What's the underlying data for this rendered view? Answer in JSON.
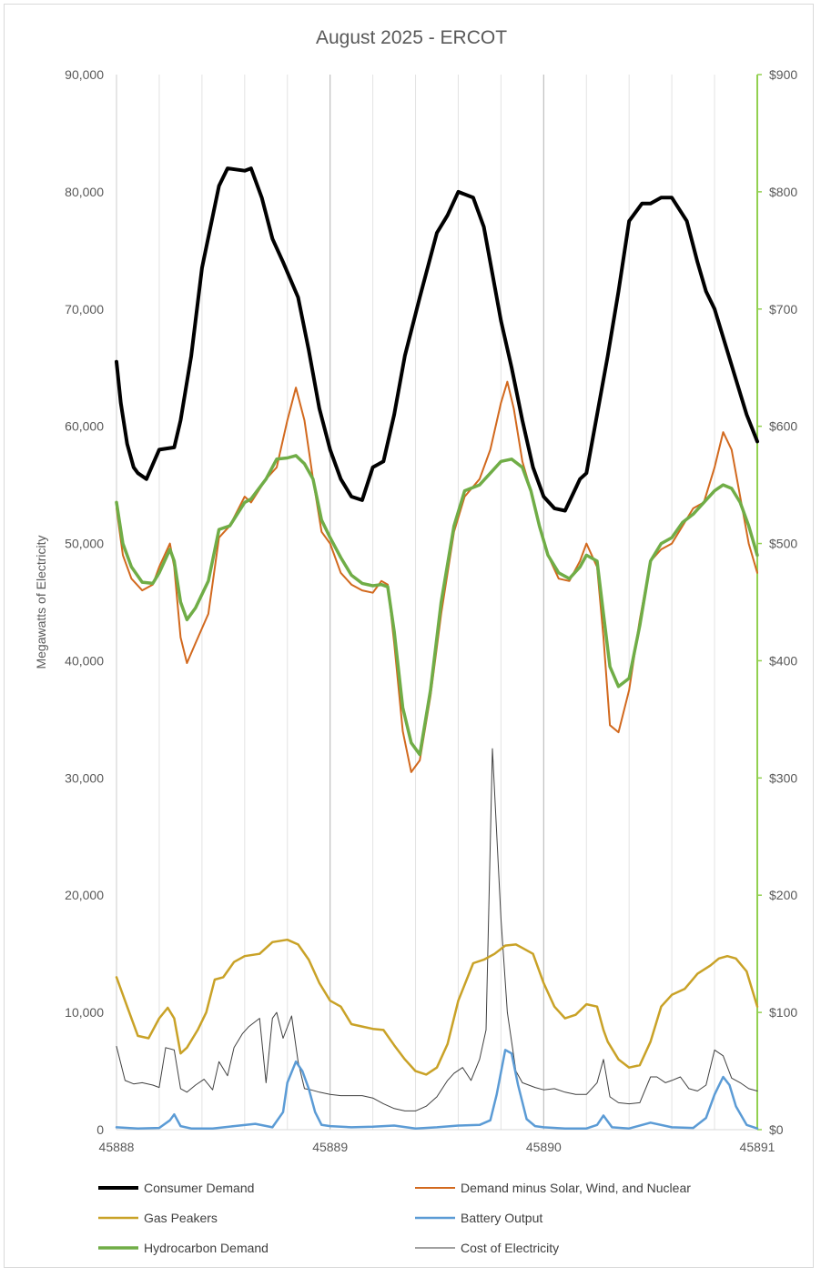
{
  "chart_data": {
    "type": "line",
    "title": "August 2025 - ERCOT",
    "ylabel": "Megawatts of Electricity",
    "ylabel_right": "",
    "xlabel": "",
    "xlim": [
      45888,
      45891
    ],
    "ylim": [
      0,
      90000
    ],
    "ylim_right": [
      0,
      900
    ],
    "x_ticks": [
      "45888",
      "45889",
      "45890",
      "45891"
    ],
    "y_ticks_left": [
      "0",
      "10,000",
      "20,000",
      "30,000",
      "40,000",
      "50,000",
      "60,000",
      "70,000",
      "80,000",
      "90,000"
    ],
    "y_ticks_right": [
      "$0",
      "$100",
      "$200",
      "$300",
      "$400",
      "$500",
      "$600",
      "$700",
      "$800",
      "$900"
    ],
    "grid": "vertical",
    "legend_position": "bottom",
    "colors": {
      "consumer": "#000000",
      "demand_minus": "#d2691e",
      "gas": "#c9a227",
      "battery": "#5b9bd5",
      "hydro": "#70ad47",
      "cost": "#404040",
      "right_axis": "#92d050"
    },
    "series": [
      {
        "name": "Consumer Demand",
        "axis": "left",
        "x": [
          45888,
          45888.02,
          45888.05,
          45888.08,
          45888.1,
          45888.14,
          45888.2,
          45888.27,
          45888.3,
          45888.35,
          45888.4,
          45888.48,
          45888.52,
          45888.6,
          45888.63,
          45888.68,
          45888.73,
          45888.78,
          45888.85,
          45888.9,
          45888.95,
          45889,
          45889.05,
          45889.1,
          45889.15,
          45889.2,
          45889.25,
          45889.3,
          45889.35,
          45889.42,
          45889.5,
          45889.55,
          45889.6,
          45889.67,
          45889.72,
          45889.76,
          45889.8,
          45889.85,
          45889.9,
          45889.95,
          45890,
          45890.05,
          45890.1,
          45890.17,
          45890.2,
          45890.25,
          45890.3,
          45890.35,
          45890.4,
          45890.46,
          45890.5,
          45890.55,
          45890.6,
          45890.67,
          45890.72,
          45890.76,
          45890.8,
          45890.85,
          45890.9,
          45890.95,
          45891
        ],
        "values": [
          65500,
          62000,
          58500,
          56500,
          56000,
          55500,
          58000,
          58200,
          60500,
          66000,
          73500,
          80500,
          82000,
          81800,
          82000,
          79500,
          76000,
          74000,
          71000,
          66500,
          61500,
          58000,
          55500,
          54000,
          53700,
          56500,
          57000,
          61000,
          66000,
          71000,
          76500,
          78000,
          80000,
          79500,
          77000,
          73000,
          69000,
          65000,
          60500,
          56500,
          54000,
          53000,
          52800,
          55500,
          56000,
          61000,
          66000,
          71500,
          77500,
          79000,
          79000,
          79500,
          79500,
          77500,
          74000,
          71500,
          70000,
          67000,
          64000,
          61000,
          58700
        ]
      },
      {
        "name": "Demand minus Solar, Wind, and Nuclear",
        "axis": "left",
        "x": [
          45888,
          45888.03,
          45888.07,
          45888.12,
          45888.17,
          45888.2,
          45888.25,
          45888.27,
          45888.3,
          45888.33,
          45888.37,
          45888.43,
          45888.48,
          45888.53,
          45888.6,
          45888.63,
          45888.7,
          45888.75,
          45888.8,
          45888.84,
          45888.88,
          45888.92,
          45888.96,
          45889,
          45889.05,
          45889.1,
          45889.15,
          45889.2,
          45889.24,
          45889.27,
          45889.3,
          45889.34,
          45889.38,
          45889.42,
          45889.47,
          45889.52,
          45889.58,
          45889.63,
          45889.7,
          45889.75,
          45889.8,
          45889.83,
          45889.86,
          45889.9,
          45889.94,
          45889.98,
          45890.02,
          45890.07,
          45890.12,
          45890.17,
          45890.2,
          45890.25,
          45890.28,
          45890.31,
          45890.35,
          45890.4,
          45890.45,
          45890.5,
          45890.55,
          45890.6,
          45890.65,
          45890.7,
          45890.75,
          45890.8,
          45890.84,
          45890.88,
          45890.92,
          45890.96,
          45891
        ],
        "values": [
          53000,
          49000,
          47000,
          46000,
          46500,
          48000,
          50000,
          48000,
          42000,
          39800,
          41500,
          44000,
          50500,
          51500,
          54000,
          53500,
          55500,
          56500,
          60500,
          63300,
          60500,
          55500,
          51000,
          50000,
          47500,
          46500,
          46000,
          45800,
          46800,
          46500,
          41500,
          34000,
          30500,
          31500,
          37000,
          44000,
          51000,
          54000,
          55500,
          58000,
          62000,
          63800,
          61500,
          57000,
          54500,
          51500,
          49000,
          47000,
          46800,
          48500,
          50000,
          48000,
          42000,
          34500,
          33900,
          37500,
          43500,
          48500,
          49500,
          50000,
          51500,
          53000,
          53500,
          56500,
          59500,
          58000,
          54000,
          50000,
          47500
        ]
      },
      {
        "name": "Gas Peakers",
        "axis": "left",
        "x": [
          45888,
          45888.05,
          45888.1,
          45888.15,
          45888.2,
          45888.24,
          45888.27,
          45888.3,
          45888.33,
          45888.38,
          45888.42,
          45888.46,
          45888.5,
          45888.55,
          45888.6,
          45888.67,
          45888.73,
          45888.8,
          45888.85,
          45888.9,
          45888.95,
          45889,
          45889.05,
          45889.1,
          45889.15,
          45889.2,
          45889.25,
          45889.3,
          45889.35,
          45889.4,
          45889.45,
          45889.5,
          45889.55,
          45889.6,
          45889.67,
          45889.72,
          45889.77,
          45889.82,
          45889.87,
          45889.9,
          45889.95,
          45890,
          45890.05,
          45890.1,
          45890.15,
          45890.2,
          45890.25,
          45890.28,
          45890.3,
          45890.35,
          45890.4,
          45890.45,
          45890.5,
          45890.55,
          45890.6,
          45890.66,
          45890.72,
          45890.78,
          45890.82,
          45890.86,
          45890.9,
          45890.95,
          45891
        ],
        "values": [
          13000,
          10500,
          8000,
          7800,
          9500,
          10400,
          9500,
          6500,
          7000,
          8500,
          10000,
          12800,
          13000,
          14300,
          14800,
          15000,
          16000,
          16200,
          15800,
          14500,
          12500,
          11000,
          10500,
          9000,
          8800,
          8600,
          8500,
          7200,
          6000,
          5000,
          4700,
          5300,
          7300,
          11000,
          14200,
          14500,
          15000,
          15700,
          15800,
          15500,
          15000,
          12500,
          10500,
          9500,
          9800,
          10700,
          10500,
          8500,
          7500,
          6000,
          5300,
          5500,
          7500,
          10500,
          11500,
          12000,
          13300,
          14000,
          14600,
          14800,
          14600,
          13500,
          10500
        ]
      },
      {
        "name": "Battery Output",
        "axis": "left",
        "x": [
          45888,
          45888.1,
          45888.2,
          45888.25,
          45888.27,
          45888.3,
          45888.35,
          45888.45,
          45888.55,
          45888.65,
          45888.73,
          45888.78,
          45888.8,
          45888.84,
          45888.87,
          45888.9,
          45888.93,
          45888.96,
          45889,
          45889.1,
          45889.2,
          45889.3,
          45889.4,
          45889.5,
          45889.6,
          45889.7,
          45889.75,
          45889.78,
          45889.82,
          45889.85,
          45889.88,
          45889.92,
          45889.96,
          45890,
          45890.1,
          45890.2,
          45890.25,
          45890.28,
          45890.32,
          45890.4,
          45890.5,
          45890.6,
          45890.7,
          45890.76,
          45890.8,
          45890.84,
          45890.87,
          45890.9,
          45890.95,
          45891
        ],
        "values": [
          200,
          100,
          150,
          800,
          1300,
          300,
          100,
          100,
          300,
          500,
          200,
          1500,
          4000,
          5800,
          5000,
          3500,
          1500,
          400,
          300,
          200,
          250,
          350,
          100,
          200,
          350,
          400,
          800,
          3000,
          6800,
          6500,
          3800,
          900,
          300,
          200,
          100,
          100,
          400,
          1200,
          200,
          100,
          600,
          200,
          150,
          1000,
          3000,
          4500,
          3800,
          2000,
          400,
          100
        ]
      },
      {
        "name": "Hydrocarbon Demand",
        "axis": "left",
        "x": [
          45888,
          45888.03,
          45888.07,
          45888.12,
          45888.17,
          45888.2,
          45888.25,
          45888.27,
          45888.3,
          45888.33,
          45888.37,
          45888.43,
          45888.48,
          45888.53,
          45888.6,
          45888.63,
          45888.7,
          45888.75,
          45888.8,
          45888.84,
          45888.88,
          45888.92,
          45888.96,
          45889,
          45889.05,
          45889.1,
          45889.15,
          45889.2,
          45889.24,
          45889.27,
          45889.3,
          45889.34,
          45889.38,
          45889.42,
          45889.47,
          45889.52,
          45889.58,
          45889.63,
          45889.7,
          45889.75,
          45889.8,
          45889.85,
          45889.9,
          45889.94,
          45889.98,
          45890.02,
          45890.07,
          45890.12,
          45890.17,
          45890.2,
          45890.25,
          45890.28,
          45890.31,
          45890.35,
          45890.4,
          45890.45,
          45890.5,
          45890.55,
          45890.6,
          45890.65,
          45890.7,
          45890.75,
          45890.8,
          45890.84,
          45890.88,
          45890.92,
          45890.96,
          45891
        ],
        "values": [
          53500,
          50000,
          48000,
          46700,
          46600,
          47500,
          49500,
          48500,
          45000,
          43500,
          44500,
          46800,
          51200,
          51500,
          53500,
          53800,
          55500,
          57200,
          57300,
          57500,
          56800,
          55500,
          52000,
          50500,
          48800,
          47300,
          46600,
          46400,
          46500,
          46300,
          42500,
          36000,
          33000,
          32000,
          37500,
          45000,
          51500,
          54500,
          55000,
          56000,
          57000,
          57200,
          56500,
          54500,
          51500,
          49000,
          47500,
          47000,
          48000,
          49000,
          48500,
          44000,
          39500,
          37800,
          38500,
          43000,
          48500,
          50000,
          50500,
          51800,
          52500,
          53500,
          54500,
          55000,
          54700,
          53500,
          51500,
          49000
        ]
      },
      {
        "name": "Cost of Electricity",
        "axis": "right",
        "x": [
          45888,
          45888.04,
          45888.08,
          45888.12,
          45888.17,
          45888.2,
          45888.23,
          45888.27,
          45888.3,
          45888.33,
          45888.37,
          45888.41,
          45888.45,
          45888.48,
          45888.52,
          45888.55,
          45888.59,
          45888.62,
          45888.67,
          45888.7,
          45888.73,
          45888.75,
          45888.78,
          45888.82,
          45888.85,
          45888.88,
          45888.91,
          45888.95,
          45889,
          45889.05,
          45889.1,
          45889.15,
          45889.2,
          45889.25,
          45889.3,
          45889.35,
          45889.4,
          45889.45,
          45889.5,
          45889.55,
          45889.58,
          45889.62,
          45889.66,
          45889.7,
          45889.73,
          45889.76,
          45889.8,
          45889.83,
          45889.85,
          45889.87,
          45889.9,
          45889.93,
          45889.96,
          45890,
          45890.05,
          45890.1,
          45890.15,
          45890.2,
          45890.25,
          45890.28,
          45890.31,
          45890.35,
          45890.4,
          45890.45,
          45890.5,
          45890.53,
          45890.57,
          45890.6,
          45890.64,
          45890.68,
          45890.72,
          45890.76,
          45890.8,
          45890.84,
          45890.88,
          45890.92,
          45890.96,
          45891
        ],
        "values": [
          71,
          42,
          39,
          40,
          38,
          36,
          70,
          68,
          35,
          32,
          38,
          43,
          34,
          58,
          46,
          70,
          82,
          88,
          95,
          40,
          95,
          100,
          78,
          97,
          58,
          35,
          34,
          32,
          30,
          29,
          29,
          29,
          27,
          22,
          18,
          16,
          16,
          20,
          28,
          42,
          48,
          53,
          42,
          60,
          85,
          325,
          180,
          100,
          75,
          50,
          40,
          38,
          36,
          34,
          35,
          32,
          30,
          30,
          40,
          60,
          28,
          23,
          22,
          23,
          45,
          45,
          40,
          42,
          45,
          35,
          33,
          38,
          68,
          63,
          44,
          40,
          35,
          33
        ]
      }
    ]
  }
}
